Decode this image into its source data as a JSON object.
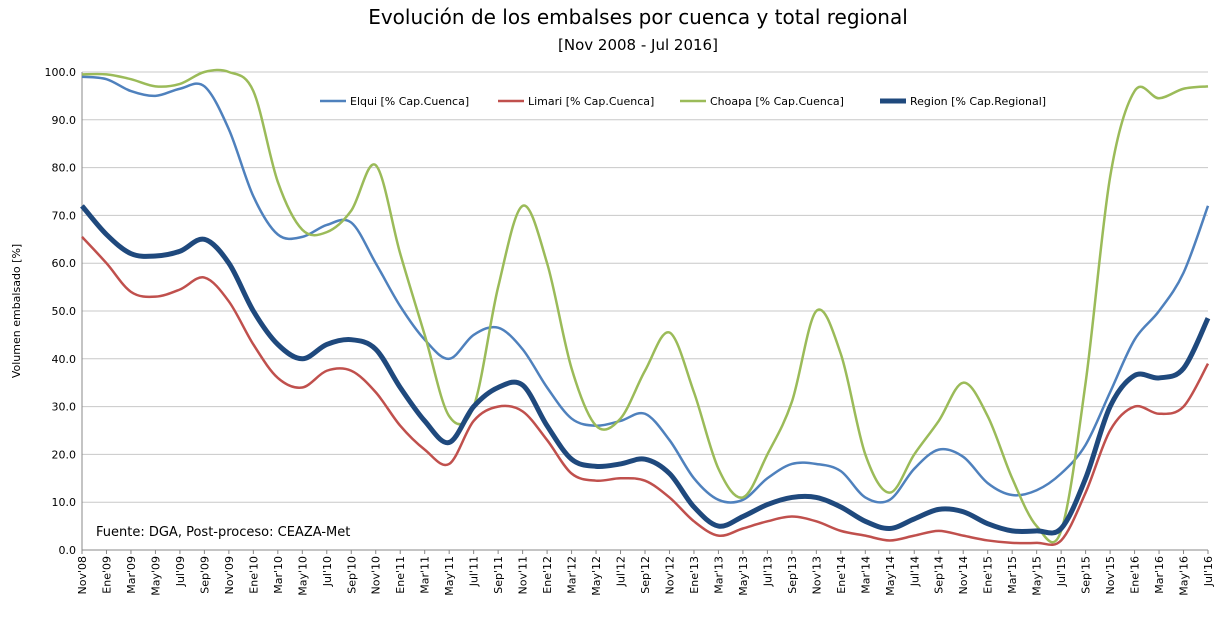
{
  "chart_data": {
    "type": "line",
    "title": "Evolución de los embalses por cuenca y total regional",
    "subtitle": "[Nov 2008 - Jul 2016]",
    "y_label": "Volumen embalsado [%]",
    "annotation": "Fuente: DGA, Post-proceso: CEAZA-Met",
    "categories": [
      "Nov'08",
      "Ene'09",
      "Mar'09",
      "May'09",
      "Jul'09",
      "Sep'09",
      "Nov'09",
      "Ene'10",
      "Mar'10",
      "May'10",
      "Jul'10",
      "Sep'10",
      "Nov'10",
      "Ene'11",
      "Mar'11",
      "May'11",
      "Jul'11",
      "Sep'11",
      "Nov'11",
      "Ene'12",
      "Mar'12",
      "May'12",
      "Jul'12",
      "Sep'12",
      "Nov'12",
      "Ene'13",
      "Mar'13",
      "May'13",
      "Jul'13",
      "Sep'13",
      "Nov'13",
      "Ene'14",
      "Mar'14",
      "May'14",
      "Jul'14",
      "Sep'14",
      "Nov'14",
      "Ene'15",
      "Mar'15",
      "May'15",
      "Jul'15",
      "Sep'15",
      "Nov'15",
      "Ene'16",
      "Mar'16",
      "May'16",
      "Jul'16"
    ],
    "series": [
      {
        "name": "Elqui [% Cap.Cuenca]",
        "color": "#4f81bd",
        "width": 2.5,
        "values": [
          99,
          98.5,
          96,
          95,
          96.5,
          97,
          88,
          74,
          66,
          65.5,
          68,
          68.5,
          60,
          51,
          44,
          40,
          45,
          46.5,
          42,
          34,
          27.5,
          26,
          27,
          28.5,
          23,
          15,
          10.5,
          10.5,
          15,
          18,
          18,
          16.5,
          11,
          10.5,
          17,
          21,
          19.5,
          14,
          11.5,
          12.5,
          16,
          22,
          33,
          44,
          50,
          58,
          72
        ]
      },
      {
        "name": "Limari  [% Cap.Cuenca]",
        "color": "#c0504d",
        "width": 2.5,
        "values": [
          65.5,
          60,
          54,
          53,
          54.5,
          57,
          52,
          43,
          36,
          34,
          37.5,
          37.5,
          33,
          26,
          21,
          18,
          27,
          30,
          29,
          23,
          16,
          14.5,
          15,
          14.5,
          11,
          6,
          3,
          4.5,
          6,
          7,
          6,
          4,
          3,
          2,
          3,
          4,
          3,
          2,
          1.5,
          1.5,
          2,
          12,
          25,
          30,
          28.5,
          30,
          39
        ]
      },
      {
        "name": "Choapa  [% Cap.Cuenca]",
        "color": "#9bbb59",
        "width": 2.5,
        "values": [
          99.5,
          99.5,
          98.5,
          97,
          97.5,
          100,
          100,
          96,
          77,
          67,
          66.5,
          71,
          80.5,
          62,
          45,
          28,
          30,
          55,
          72,
          60,
          38,
          26,
          27.5,
          37.5,
          45.5,
          33,
          17,
          11,
          20,
          31,
          50,
          41,
          20,
          12,
          20,
          27,
          35,
          28,
          15,
          5,
          4,
          35,
          78,
          96,
          94.5,
          96.5,
          97
        ]
      },
      {
        "name": "Region  [% Cap.Regional]",
        "color": "#1f497d",
        "width": 5,
        "values": [
          72,
          66,
          62,
          61.5,
          62.5,
          65,
          60,
          50,
          43,
          40,
          43,
          44,
          42,
          34,
          27,
          22.5,
          30,
          34,
          34.5,
          26,
          19,
          17.5,
          18,
          19,
          16,
          9,
          5,
          7,
          9.5,
          11,
          11,
          9,
          6,
          4.5,
          6.5,
          8.5,
          8,
          5.5,
          4,
          4,
          4.5,
          15,
          30,
          36.5,
          36,
          38,
          48.5
        ]
      }
    ],
    "ylim": [
      0,
      100
    ],
    "yticks": [
      {
        "value": 0,
        "label": "0.0"
      },
      {
        "value": 10,
        "label": "10.0"
      },
      {
        "value": 20,
        "label": "20.0"
      },
      {
        "value": 30,
        "label": "30.0"
      },
      {
        "value": 40,
        "label": "40.0"
      },
      {
        "value": 50,
        "label": "50.0"
      },
      {
        "value": 60,
        "label": "60.0"
      },
      {
        "value": 70,
        "label": "70.0"
      },
      {
        "value": 80,
        "label": "80.0"
      },
      {
        "value": 90,
        "label": "90.0"
      },
      {
        "value": 100,
        "label": "100.0"
      }
    ],
    "grid": true,
    "legend": "top"
  }
}
